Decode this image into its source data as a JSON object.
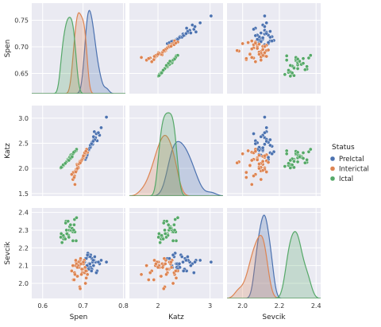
{
  "chart_data": {
    "type": "scatter",
    "kind": "pairplot",
    "variables": [
      "Spen",
      "Katz",
      "Sevcik"
    ],
    "axes": {
      "Spen": {
        "label": "Spen",
        "range": [
          0.573,
          0.805
        ],
        "ticks": [
          0.6,
          0.7,
          0.8
        ],
        "ylabel_ticks": [
          0.65,
          0.7,
          0.75
        ],
        "ylabel_tick_labels": [
          "0.65",
          "0.70",
          "0.75"
        ],
        "xlabel_tick_labels": [
          "0.6",
          "0.7",
          "0.8"
        ]
      },
      "Katz": {
        "label": "Katz",
        "range": [
          1.45,
          3.25
        ],
        "ticks": [
          2,
          3
        ],
        "ylabel_ticks": [
          1.5,
          2.0,
          2.5,
          3.0
        ],
        "ylabel_tick_labels": [
          "1.5",
          "2.0",
          "2.5",
          "3.0"
        ],
        "xlabel_tick_labels": [
          "2",
          "3"
        ]
      },
      "Sevcik": {
        "label": "Sevcik",
        "range": [
          1.915,
          2.425
        ],
        "ticks": [
          2.0,
          2.1,
          2.2,
          2.3,
          2.4
        ],
        "ylabel_ticks": [
          2.0,
          2.1,
          2.2,
          2.3,
          2.4
        ],
        "ylabel_tick_labels": [
          "2.0",
          "2.1",
          "2.2",
          "2.3",
          "2.4"
        ],
        "xlabel_ticks": [
          2.0,
          2.2,
          2.4
        ],
        "xlabel_tick_labels": [
          "2.0",
          "2.2",
          "2.4"
        ]
      }
    },
    "spen_ylim": [
      0.612,
      0.782
    ],
    "grid": true,
    "legend": {
      "title": "Status",
      "placement": "right",
      "entries": [
        {
          "label": "PreIctal",
          "color": "#4c72b0"
        },
        {
          "label": "Interictal",
          "color": "#dd8452"
        },
        {
          "label": "Ictal",
          "color": "#55a868"
        }
      ]
    },
    "series": [
      {
        "name": "PreIctal",
        "color": "#4c72b0",
        "Spen": [
          0.714,
          0.722,
          0.708,
          0.731,
          0.719,
          0.702,
          0.728,
          0.716,
          0.711,
          0.735,
          0.724,
          0.706,
          0.719,
          0.741,
          0.712,
          0.709,
          0.727,
          0.733,
          0.704,
          0.718,
          0.722,
          0.715,
          0.745,
          0.711,
          0.726,
          0.713,
          0.708,
          0.738,
          0.721,
          0.717,
          0.729,
          0.71,
          0.725,
          0.758,
          0.714
        ],
        "Katz": [
          2.35,
          2.52,
          2.28,
          2.61,
          2.44,
          2.21,
          2.73,
          2.39,
          2.31,
          2.55,
          2.48,
          2.18,
          2.42,
          2.66,
          2.33,
          2.27,
          2.58,
          2.69,
          2.24,
          2.46,
          2.51,
          2.37,
          2.81,
          2.29,
          2.63,
          2.36,
          2.22,
          2.71,
          2.49,
          2.41,
          2.57,
          2.26,
          2.54,
          3.02,
          2.38
        ],
        "Sevcik": [
          2.11,
          2.14,
          2.09,
          2.12,
          2.16,
          2.08,
          2.13,
          2.1,
          2.15,
          2.07,
          2.12,
          2.14,
          2.09,
          2.11,
          2.17,
          2.1,
          2.13,
          2.06,
          2.12,
          2.15,
          2.08,
          2.11,
          2.13,
          2.16,
          2.1,
          2.09,
          2.14,
          2.12,
          2.07,
          2.11,
          2.15,
          2.1,
          2.13,
          2.12,
          2.08
        ]
      },
      {
        "name": "Interictal",
        "color": "#dd8452",
        "Spen": [
          0.702,
          0.685,
          0.711,
          0.693,
          0.676,
          0.705,
          0.689,
          0.698,
          0.681,
          0.708,
          0.694,
          0.672,
          0.701,
          0.687,
          0.699,
          0.683,
          0.706,
          0.691,
          0.679,
          0.703,
          0.688,
          0.696,
          0.684,
          0.709,
          0.692,
          0.675,
          0.7,
          0.686,
          0.697,
          0.682,
          0.704,
          0.69,
          0.678,
          0.695,
          0.707,
          0.688,
          0.693,
          0.68,
          0.701,
          0.686
        ],
        "Katz": [
          2.21,
          2.08,
          2.32,
          2.15,
          1.92,
          2.26,
          2.01,
          2.18,
          1.95,
          2.35,
          2.12,
          1.88,
          2.24,
          2.05,
          2.19,
          1.98,
          2.29,
          2.1,
          1.85,
          2.27,
          2.03,
          2.16,
          1.96,
          2.38,
          2.13,
          1.78,
          2.22,
          2.06,
          2.17,
          1.93,
          2.31,
          2.09,
          1.82,
          2.14,
          2.34,
          2.02,
          2.11,
          1.68,
          2.25,
          2.0
        ],
        "Sevcik": [
          2.08,
          2.11,
          2.05,
          2.13,
          2.02,
          2.09,
          2.12,
          2.06,
          2.1,
          2.03,
          2.14,
          2.07,
          2.11,
          2.04,
          2.08,
          2.12,
          2.0,
          2.1,
          2.06,
          2.13,
          2.09,
          2.05,
          2.11,
          2.07,
          1.98,
          2.1,
          2.12,
          2.04,
          2.08,
          2.13,
          2.06,
          2.09,
          2.02,
          2.11,
          2.07,
          2.1,
          1.97,
          2.05,
          2.12,
          2.09
        ]
      },
      {
        "name": "Ictal",
        "color": "#55a868",
        "Spen": [
          0.662,
          0.671,
          0.655,
          0.678,
          0.649,
          0.666,
          0.683,
          0.658,
          0.674,
          0.645,
          0.668,
          0.661,
          0.679,
          0.652,
          0.67,
          0.664,
          0.657,
          0.676,
          0.648,
          0.672,
          0.66,
          0.684,
          0.653,
          0.667,
          0.675,
          0.659,
          0.669,
          0.651,
          0.68,
          0.663,
          0.656,
          0.673,
          0.646,
          0.665,
          0.677
        ],
        "Katz": [
          2.18,
          2.26,
          2.09,
          2.31,
          2.03,
          2.21,
          2.35,
          2.12,
          2.28,
          2.01,
          2.24,
          2.15,
          2.33,
          2.06,
          2.27,
          2.19,
          2.11,
          2.3,
          2.04,
          2.25,
          2.14,
          2.38,
          2.08,
          2.22,
          2.29,
          2.13,
          2.2,
          2.07,
          2.34,
          2.17,
          2.1,
          2.23,
          2.02,
          2.16,
          2.32
        ],
        "Sevcik": [
          2.28,
          2.31,
          2.25,
          2.33,
          2.27,
          2.3,
          2.24,
          2.35,
          2.29,
          2.26,
          2.32,
          2.28,
          2.36,
          2.25,
          2.3,
          2.27,
          2.34,
          2.29,
          2.23,
          2.31,
          2.28,
          2.37,
          2.26,
          2.32,
          2.24,
          2.3,
          2.33,
          2.27,
          2.29,
          2.35,
          2.25,
          2.31,
          2.28,
          2.26,
          2.3
        ]
      }
    ]
  }
}
